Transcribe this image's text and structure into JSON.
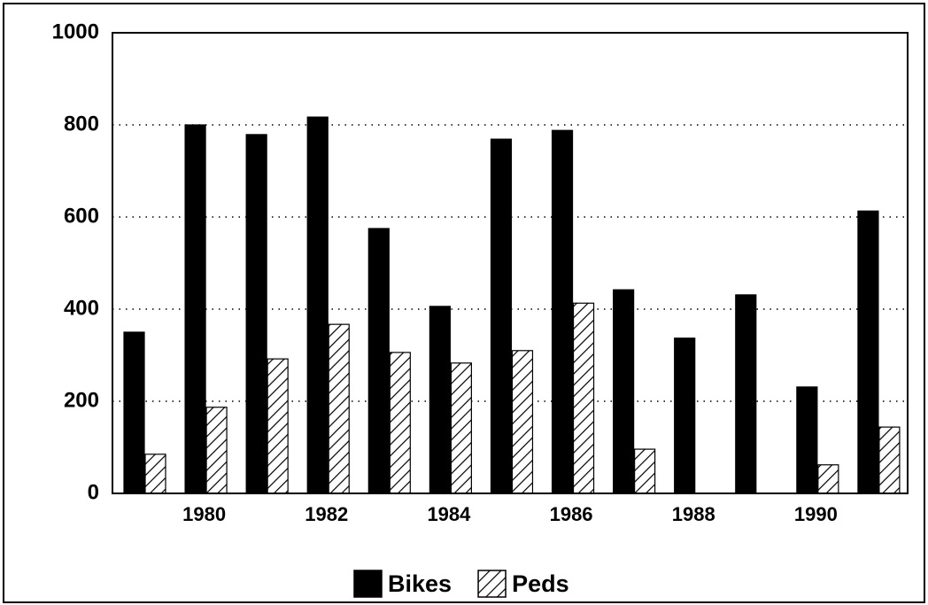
{
  "chart_data": {
    "type": "bar",
    "categories": [
      null,
      "1980",
      null,
      "1982",
      null,
      "1984",
      null,
      "1986",
      null,
      "1988",
      null,
      "1990",
      null
    ],
    "series": [
      {
        "name": "Bikes",
        "color": "#000000",
        "values": [
          350,
          800,
          779,
          817,
          575,
          406,
          769,
          788,
          442,
          337,
          431,
          231,
          613
        ]
      },
      {
        "name": "Peds",
        "color": "#000000",
        "pattern": "hatch",
        "values": [
          85,
          187,
          292,
          367,
          306,
          283,
          310,
          413,
          96,
          0,
          0,
          62,
          144
        ]
      }
    ],
    "ylim": [
      0,
      1000
    ],
    "yticks": [
      0,
      200,
      400,
      600,
      800,
      1000
    ],
    "grid": true,
    "legend": "bottom"
  }
}
